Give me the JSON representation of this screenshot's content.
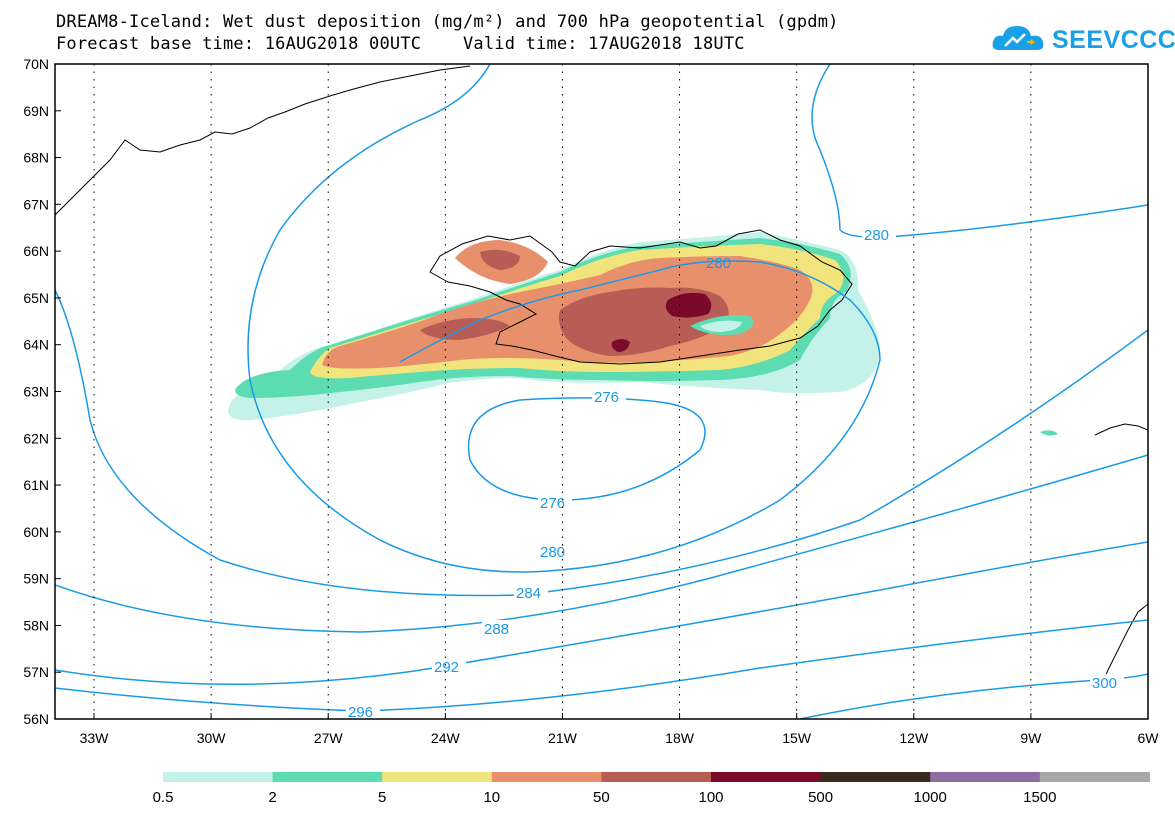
{
  "header": {
    "title_line1": "DREAM8-Iceland: Wet dust deposition (mg/m²) and 700 hPa geopotential (gpdm)",
    "title_line2": "Forecast base time: 16AUG2018 00UTC    Valid time: 17AUG2018 18UTC"
  },
  "logo": {
    "text": "SEEVCCC",
    "icon": "cloud-icon",
    "color": "#1aa0e6"
  },
  "map": {
    "lat_labels": [
      "70N",
      "69N",
      "68N",
      "67N",
      "66N",
      "65N",
      "64N",
      "63N",
      "62N",
      "61N",
      "60N",
      "59N",
      "58N",
      "57N",
      "56N"
    ],
    "lon_labels": [
      "33W",
      "30W",
      "27W",
      "24W",
      "21W",
      "18W",
      "15W",
      "12W",
      "9W",
      "6W"
    ],
    "contour_labels": [
      "280",
      "280",
      "276",
      "276",
      "280",
      "284",
      "288",
      "292",
      "296",
      "300"
    ],
    "contour_color": "#1a9ae6",
    "grid": "dotted"
  },
  "legend": {
    "thresholds": [
      "0.5",
      "2",
      "5",
      "10",
      "50",
      "100",
      "500",
      "1000",
      "1500"
    ],
    "colors": [
      "#c4f2e9",
      "#5cdcb0",
      "#f2e47c",
      "#e8906c",
      "#b75d55",
      "#7b0a2a",
      "#3a2a1e",
      "#8c6da4",
      "#a8a8a8"
    ]
  }
}
